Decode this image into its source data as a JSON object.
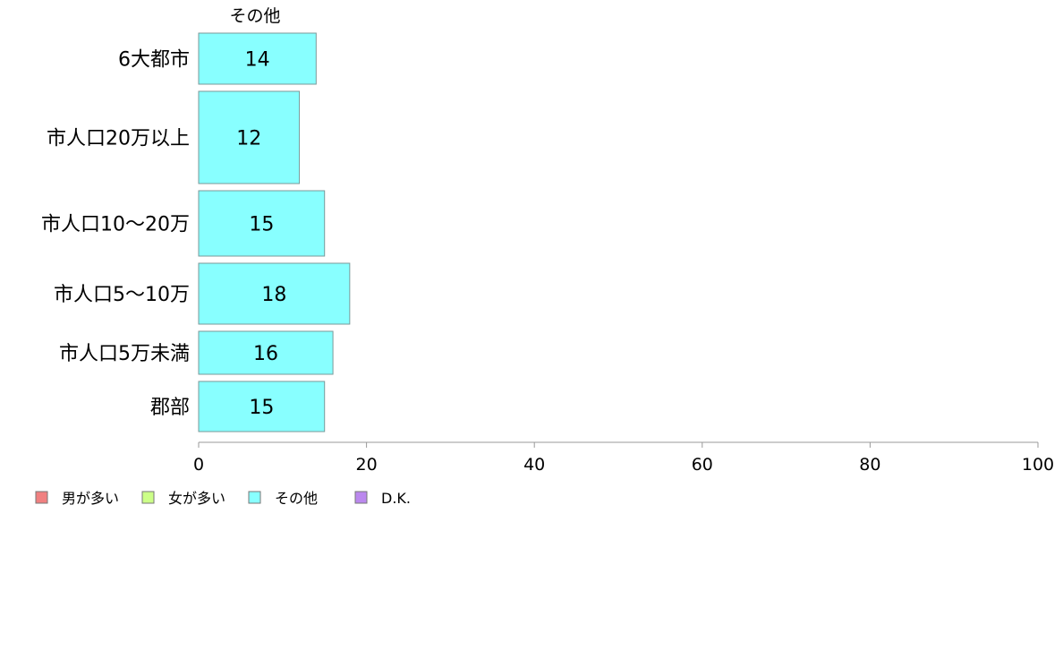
{
  "chart_data": {
    "type": "bar",
    "orientation": "horizontal",
    "stacked": true,
    "categories": [
      "6大都市",
      "市人口20万以上",
      "市人口10〜20万",
      "市人口5〜10万",
      "市人口5万未満",
      "郡部"
    ],
    "series": [
      {
        "name": "男が多い",
        "color": "#F08080",
        "values": [
          null,
          null,
          null,
          null,
          null,
          null
        ]
      },
      {
        "name": "女が多い",
        "color": "#CCFF88",
        "values": [
          null,
          null,
          null,
          null,
          null,
          null
        ]
      },
      {
        "name": "その他",
        "color": "#88FFFF",
        "values": [
          14,
          12,
          15,
          18,
          16,
          15
        ]
      },
      {
        "name": "D.K.",
        "color": "#BB88EE",
        "values": [
          null,
          null,
          null,
          null,
          null,
          null
        ]
      }
    ],
    "shown_series_label": "その他",
    "xlim": [
      0,
      100
    ],
    "xticks": [
      "0",
      "20",
      "40",
      "60",
      "80",
      "100"
    ],
    "grid": false,
    "legend_position": "bottom-left"
  }
}
